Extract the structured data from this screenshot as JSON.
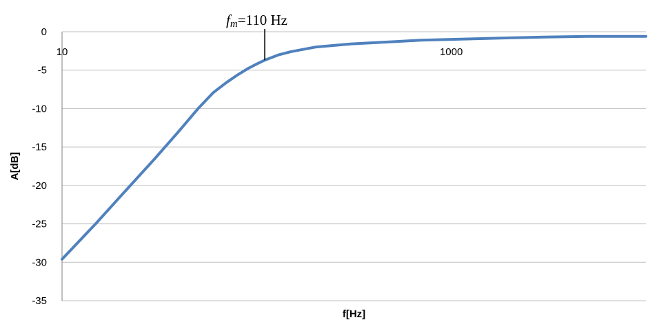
{
  "chart_data": {
    "type": "line",
    "title": "",
    "xlabel": "f[Hz]",
    "ylabel": "A[dB]",
    "x_scale": "log",
    "xlim": [
      10,
      10000
    ],
    "ylim": [
      -35,
      0
    ],
    "x_ticks": [
      {
        "value": 10,
        "label": "10"
      },
      {
        "value": 1000,
        "label": "1000"
      }
    ],
    "y_ticks": [
      {
        "value": 0,
        "label": "0"
      },
      {
        "value": -5,
        "label": "-5"
      },
      {
        "value": -10,
        "label": "-10"
      },
      {
        "value": -15,
        "label": "-15"
      },
      {
        "value": -20,
        "label": "-20"
      },
      {
        "value": -25,
        "label": "-25"
      },
      {
        "value": -30,
        "label": "-30"
      },
      {
        "value": -35,
        "label": "-35"
      }
    ],
    "grid": "horizontal",
    "series": [
      {
        "color": "#4f81bd",
        "x": [
          10,
          15,
          20,
          30,
          40,
          50,
          60,
          70,
          80,
          90,
          100,
          110,
          130,
          150,
          200,
          300,
          500,
          700,
          1000,
          2000,
          3000,
          5000,
          10000
        ],
        "y": [
          -29.6,
          -24.9,
          -21.4,
          -16.5,
          -12.9,
          -10.0,
          -7.9,
          -6.6,
          -5.6,
          -4.8,
          -4.2,
          -3.7,
          -3.0,
          -2.6,
          -2.0,
          -1.6,
          -1.3,
          -1.1,
          -1.0,
          -0.8,
          -0.7,
          -0.6,
          -0.6
        ]
      }
    ],
    "annotations": [
      {
        "label_var": "f",
        "label_sub": "m",
        "label_rest": "=110 Hz",
        "x": 110,
        "y": -3.7
      }
    ]
  }
}
